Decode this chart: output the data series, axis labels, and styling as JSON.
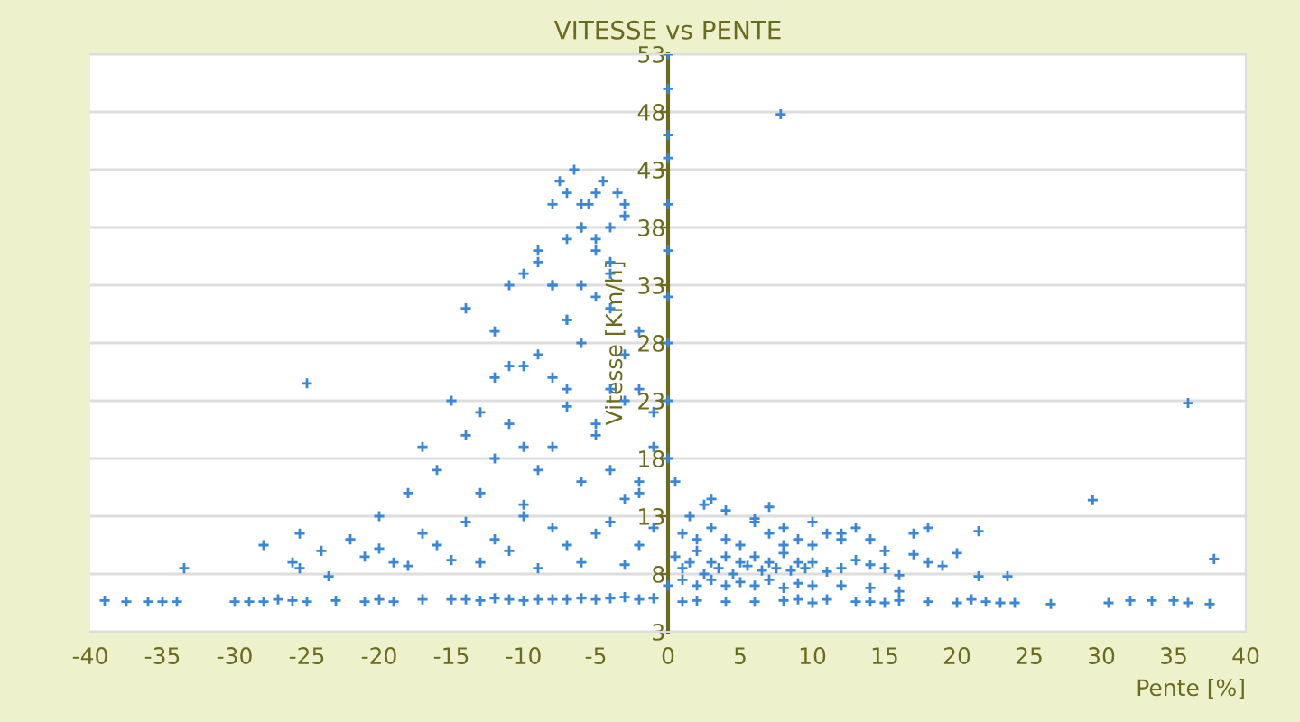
{
  "chart_data": {
    "type": "scatter",
    "title": "VITESSE vs PENTE",
    "xlabel": "Pente [%]",
    "ylabel": "Vitesse [Km/h]",
    "xlim": [
      -40,
      40
    ],
    "ylim": [
      3,
      53
    ],
    "xticks": [
      -40,
      -35,
      -30,
      -25,
      -20,
      -15,
      -10,
      -5,
      0,
      5,
      10,
      15,
      20,
      25,
      30,
      35,
      40
    ],
    "yticks": [
      3,
      8,
      13,
      18,
      23,
      28,
      33,
      38,
      43,
      48,
      53
    ],
    "grid": "y",
    "marker": "cross",
    "legend": false,
    "series": [
      {
        "color": "#3a87d8",
        "x": [
          -39,
          -37.5,
          -36,
          -35,
          -34,
          -30,
          -29,
          -28,
          -27,
          -26,
          -25,
          -23,
          -21,
          -20,
          -19,
          -17,
          -15,
          -14,
          -13,
          -12,
          -11,
          -10,
          -9,
          -8,
          -7,
          -6,
          -5,
          -4,
          -3,
          -2,
          -1,
          1,
          2,
          4,
          6,
          8,
          9,
          10,
          11,
          13,
          14,
          15,
          16,
          18,
          20,
          21,
          22,
          23,
          24,
          26.5,
          30.5,
          32,
          33.5,
          35,
          36,
          37.5,
          -33.5,
          -25,
          7.8,
          36,
          29.4,
          37.8,
          -28,
          -26,
          -25.5,
          -24,
          -23.5,
          -22,
          -21,
          -20,
          -19,
          -18,
          -17,
          -16,
          -15,
          -14,
          -13,
          -12,
          -11,
          -10,
          -9,
          -8,
          -7,
          -6,
          -5,
          -4,
          -3,
          -2,
          -1,
          -25.5,
          -20,
          -18,
          -16,
          -14,
          -13,
          -12,
          -11,
          -10,
          -9,
          -8,
          -7,
          -6,
          -5,
          -4,
          -3,
          -2,
          -1,
          -17,
          -15,
          -13,
          -12,
          -11,
          -10,
          -9,
          -8,
          -7,
          -6,
          -5,
          -4,
          -3,
          -2,
          -14,
          -12,
          -11,
          -10,
          -9,
          -8,
          -7,
          -6,
          -5,
          -4,
          -3,
          -2,
          -1,
          -10,
          -9,
          -8,
          -7,
          -6,
          -5,
          -4,
          -3,
          -2,
          -8,
          -7.5,
          -7,
          -6.5,
          -6,
          -5.5,
          -5,
          -4.5,
          -4,
          -3.5,
          -3,
          -7,
          -6,
          -5,
          -4,
          0.5,
          1,
          1.5,
          2,
          2.5,
          3,
          3.5,
          4,
          4.5,
          5,
          5.5,
          6,
          6.5,
          7,
          7.5,
          8,
          8.5,
          9,
          9.5,
          10,
          11,
          12,
          13,
          14,
          15,
          16,
          17,
          18,
          19,
          20,
          21.5,
          23.5,
          1,
          2,
          3,
          4,
          5,
          6,
          7,
          8,
          9,
          10,
          11,
          12,
          13,
          14,
          15,
          17,
          18,
          1,
          2,
          3,
          4,
          5,
          6,
          7,
          8,
          9,
          10,
          12,
          14,
          16,
          0.5,
          1.5,
          2.5,
          4,
          6,
          8,
          10,
          12,
          21.5,
          3,
          7,
          0,
          0,
          0,
          0,
          0,
          0,
          0,
          0,
          0,
          0,
          0
        ],
        "values": [
          5.7,
          5.6,
          5.6,
          5.6,
          5.6,
          5.6,
          5.6,
          5.6,
          5.8,
          5.7,
          5.6,
          5.7,
          5.6,
          5.8,
          5.6,
          5.8,
          5.8,
          5.8,
          5.7,
          5.9,
          5.8,
          5.7,
          5.8,
          5.8,
          5.8,
          5.9,
          5.8,
          5.9,
          6.0,
          5.8,
          5.9,
          5.6,
          5.7,
          5.6,
          5.6,
          5.7,
          5.8,
          5.5,
          5.8,
          5.6,
          5.6,
          5.5,
          5.7,
          5.6,
          5.5,
          5.8,
          5.6,
          5.5,
          5.5,
          5.4,
          5.5,
          5.7,
          5.7,
          5.7,
          5.5,
          5.4,
          8.5,
          24.5,
          47.8,
          22.8,
          14.4,
          9.3,
          10.5,
          9,
          8.5,
          10,
          7.8,
          11,
          9.5,
          10.2,
          9,
          8.7,
          11.5,
          10.5,
          9.2,
          12.5,
          9,
          11,
          10,
          13,
          8.5,
          12,
          10.5,
          9,
          11.5,
          12.5,
          8.8,
          10.5,
          12,
          11.5,
          13,
          15,
          17,
          20,
          22,
          18,
          21,
          14,
          17,
          19,
          22.5,
          16,
          20,
          24,
          14.5,
          16,
          22,
          19,
          23,
          15,
          25,
          26,
          19,
          27,
          25,
          24,
          28,
          21,
          17,
          23,
          15,
          31,
          29,
          33,
          26,
          35,
          33,
          30,
          33,
          32,
          35,
          27,
          24,
          19,
          34,
          36,
          33,
          37,
          38,
          36,
          34,
          39,
          29,
          40,
          42,
          41,
          43,
          40,
          40,
          41,
          42,
          38,
          41,
          40,
          30,
          38,
          37,
          31,
          9.5,
          8.5,
          9,
          10,
          8,
          9,
          8.5,
          9.5,
          8,
          9,
          8.7,
          9.5,
          8.3,
          9,
          8.5,
          9.8,
          8.3,
          9,
          8.5,
          9,
          8.2,
          8.5,
          9.2,
          8.8,
          8.5,
          7.9,
          9.7,
          9,
          8.7,
          9.8,
          7.8,
          7.8,
          11.5,
          11,
          12,
          11,
          10.5,
          12.5,
          11.5,
          10.5,
          11,
          10.5,
          11.5,
          11,
          12,
          11,
          10,
          11.5,
          12,
          7.5,
          7.0,
          7.5,
          7.0,
          7.3,
          7.0,
          7.5,
          6.8,
          7.2,
          7.0,
          7.0,
          6.8,
          6.5,
          16,
          13,
          14,
          13.5,
          12.8,
          12,
          12.5,
          11.5,
          11.7,
          14.5,
          13.8,
          53,
          50,
          46,
          44,
          40,
          36,
          32,
          28,
          23,
          18,
          7
        ]
      }
    ]
  }
}
